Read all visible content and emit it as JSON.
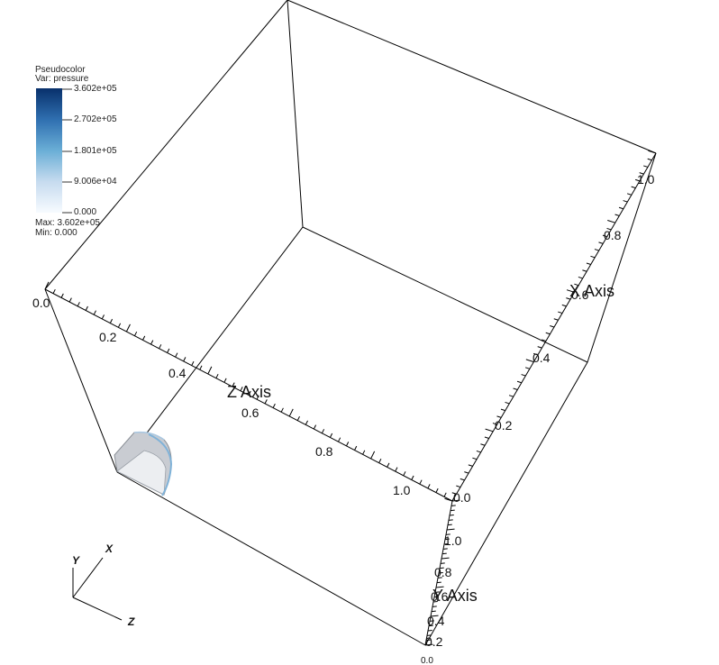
{
  "legend": {
    "plot_name": "Pseudocolor",
    "var_label": "Var: pressure",
    "ticks": [
      "3.602e+05",
      "2.702e+05",
      "1.801e+05",
      "9.006e+04",
      "0.000"
    ],
    "max_label": "Max:  3.602e+05",
    "min_label": "Min:  0.000",
    "color_top": "#08306b",
    "color_bottom": "#f7fbff"
  },
  "axes": {
    "z_title": "Z Axis",
    "x_title": "X Axis",
    "y_title": "Y Axis",
    "z_ticks": [
      "0.0",
      "0.2",
      "0.4",
      "0.6",
      "0.8",
      "1.0"
    ],
    "x_ticks": [
      "0.0",
      "0.2",
      "0.4",
      "0.6",
      "0.8",
      "1.0"
    ],
    "y_ticks": [
      "0.0",
      "0.2",
      "0.4",
      "0.6",
      "0.8",
      "1.0"
    ]
  },
  "triad": {
    "x": "X",
    "y": "Y",
    "z": "Z"
  }
}
